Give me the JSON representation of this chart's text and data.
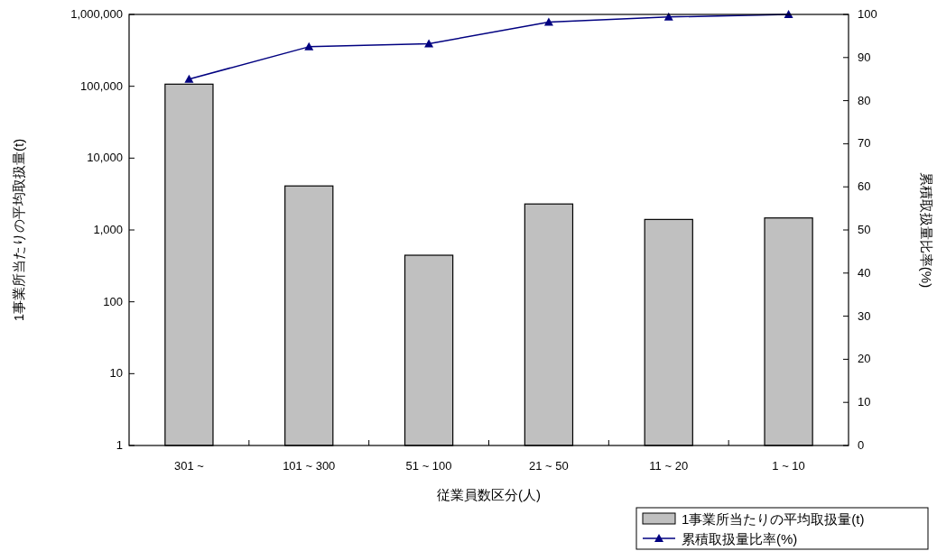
{
  "chart_data": {
    "type": "bar",
    "xlabel": "従業員数区分(人)",
    "ylabel": "1事業所当たりの平均取扱量(t)",
    "y2label": "累積取扱量比率(%)",
    "categories": [
      "301 ~",
      "101 ~ 300",
      "51 ~ 100",
      "21 ~ 50",
      "11 ~ 20",
      "1 ~ 10"
    ],
    "series": [
      {
        "name": "1事業所当たりの平均取扱量(t)",
        "color": "#c0c0c0",
        "values": [
          107000,
          4100,
          445,
          2300,
          1400,
          1470
        ]
      },
      {
        "name": "累積取扱量比率(%)",
        "type": "line",
        "axis": "y2",
        "color": "#000080",
        "values": [
          85,
          92.5,
          93.2,
          98.2,
          99.4,
          100
        ]
      }
    ],
    "log": "y",
    "marker": "triangle",
    "legend": "bottom right",
    "ylim": [
      1,
      1000000
    ],
    "yticks": [
      1,
      10,
      100,
      {
        "value": 1000,
        "label": "1,000"
      },
      {
        "value": 10000,
        "label": "10,000"
      },
      {
        "value": 100000,
        "label": "100,000"
      },
      {
        "value": 1000000,
        "label": "1,000,000"
      }
    ],
    "y2lim": [
      0,
      100
    ],
    "y2ticks": [
      0,
      10,
      20,
      30,
      40,
      50,
      60,
      70,
      80,
      90,
      100
    ]
  }
}
